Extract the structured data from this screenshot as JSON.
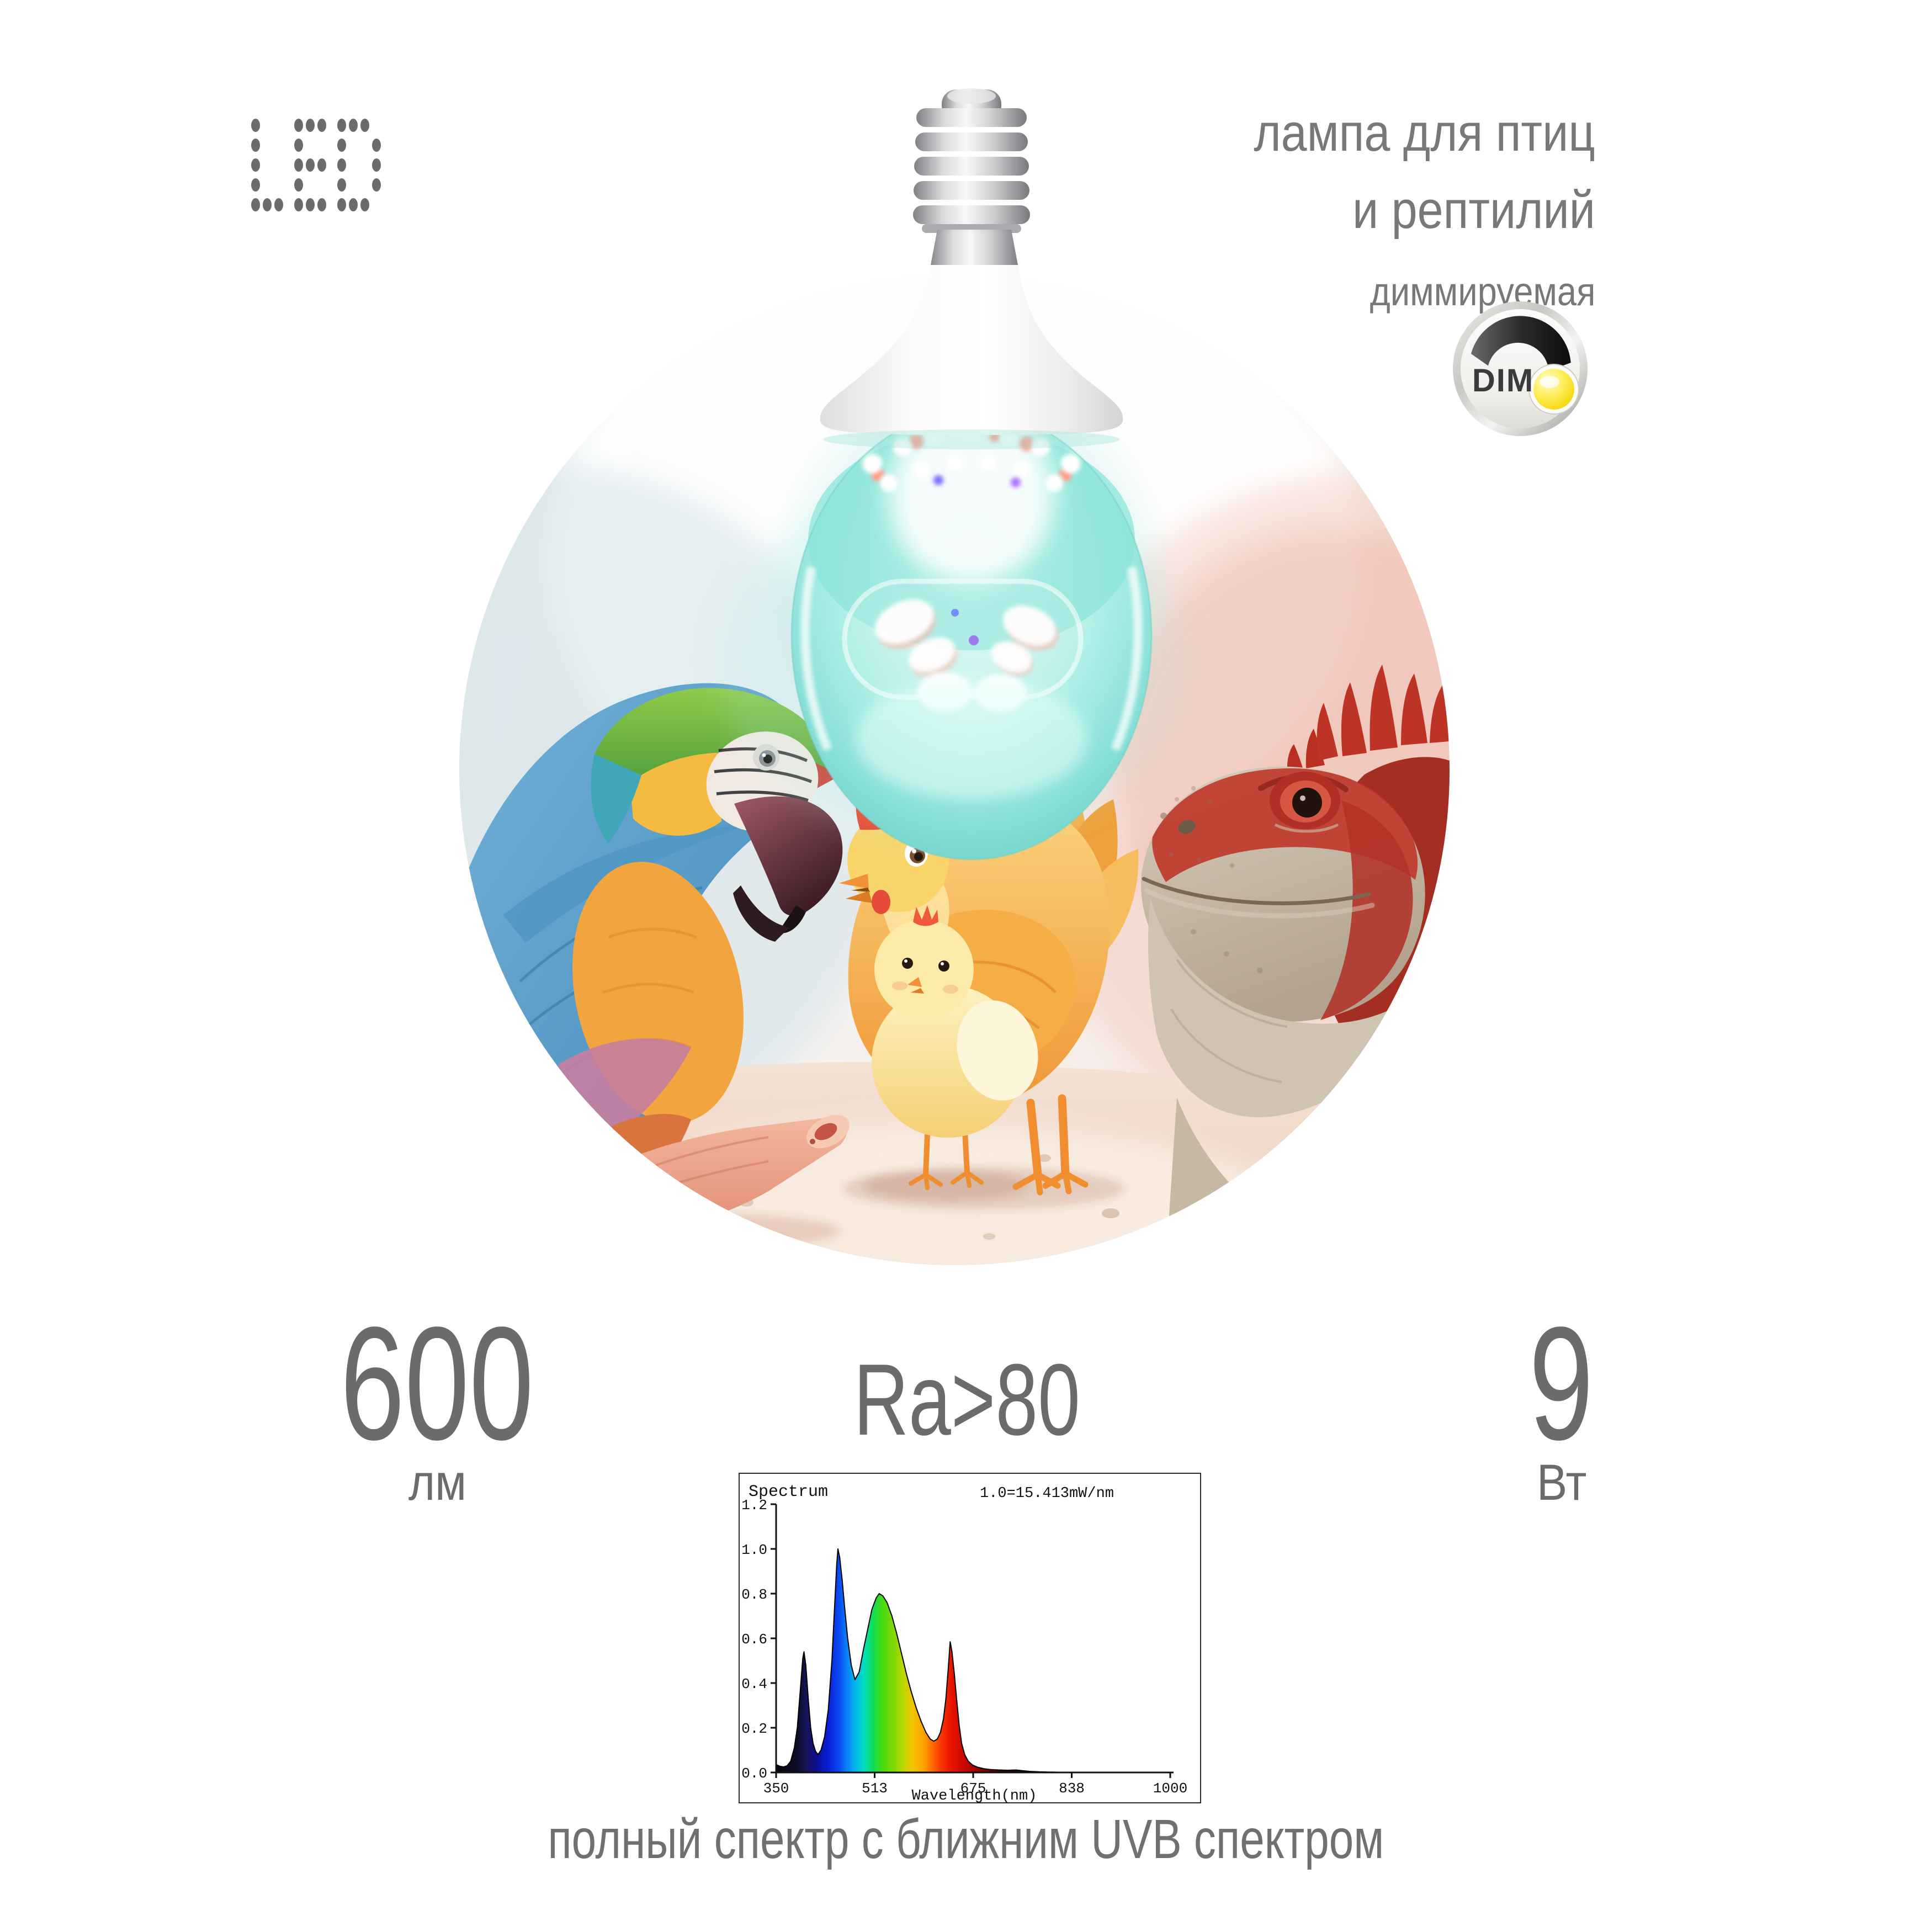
{
  "logo": {
    "text": "LED"
  },
  "header": {
    "line1": "лампа для птиц",
    "line2": "и рептилий",
    "line3": "диммируемая"
  },
  "dim_badge": {
    "label": "DIM"
  },
  "stats": {
    "lumens_value": "600",
    "lumens_unit": "лм",
    "cri_value": "Ra>80",
    "watts_value": "9",
    "watts_unit": "Вт"
  },
  "caption": "полный спектр с ближним UVB спектром",
  "colors": {
    "stat_text": "#6a6b6d",
    "heading_text": "#77787a",
    "logo_dots": "#6a6b6d",
    "badge_yellow": "#f2d40c",
    "bulb_glow_teal": "#8ce4da",
    "spectrum_blue_peak": "#0a46f0",
    "spectrum_green_peak": "#3fd810",
    "spectrum_red_peak": "#ee1000"
  },
  "chart_data": {
    "type": "area",
    "title": "Spectrum",
    "scale_note": "1.0=15.413mW/nm",
    "xlabel": "Wavelength(nm)",
    "ylabel": "",
    "xlim": [
      350,
      1000
    ],
    "ylim": [
      0,
      1.2
    ],
    "x_ticks": [
      "350",
      "513",
      "675",
      "838",
      "1000"
    ],
    "y_ticks": [
      "0.0",
      "0.2",
      "0.4",
      "0.6",
      "0.8",
      "1.0",
      "1.2"
    ],
    "grid": false,
    "legend": false,
    "peaks_nm": [
      396,
      452,
      520,
      637
    ],
    "series": [
      {
        "name": "led-spectrum-intensity",
        "points": [
          [
            350,
            0.035
          ],
          [
            356,
            0.028
          ],
          [
            362,
            0.025
          ],
          [
            368,
            0.03
          ],
          [
            374,
            0.05
          ],
          [
            380,
            0.11
          ],
          [
            385,
            0.2
          ],
          [
            390,
            0.37
          ],
          [
            394,
            0.51
          ],
          [
            396,
            0.54
          ],
          [
            399,
            0.48
          ],
          [
            403,
            0.33
          ],
          [
            407,
            0.2
          ],
          [
            411,
            0.13
          ],
          [
            415,
            0.095
          ],
          [
            419,
            0.08
          ],
          [
            424,
            0.1
          ],
          [
            430,
            0.16
          ],
          [
            436,
            0.28
          ],
          [
            442,
            0.5
          ],
          [
            446,
            0.72
          ],
          [
            450,
            0.93
          ],
          [
            452,
            1.0
          ],
          [
            455,
            0.96
          ],
          [
            459,
            0.86
          ],
          [
            463,
            0.74
          ],
          [
            468,
            0.6
          ],
          [
            474,
            0.48
          ],
          [
            480,
            0.415
          ],
          [
            487,
            0.45
          ],
          [
            494,
            0.55
          ],
          [
            501,
            0.64
          ],
          [
            508,
            0.73
          ],
          [
            515,
            0.78
          ],
          [
            520,
            0.8
          ],
          [
            526,
            0.79
          ],
          [
            533,
            0.76
          ],
          [
            541,
            0.7
          ],
          [
            549,
            0.62
          ],
          [
            557,
            0.53
          ],
          [
            565,
            0.44
          ],
          [
            573,
            0.36
          ],
          [
            581,
            0.29
          ],
          [
            589,
            0.23
          ],
          [
            597,
            0.18
          ],
          [
            604,
            0.15
          ],
          [
            610,
            0.14
          ],
          [
            616,
            0.15
          ],
          [
            621,
            0.18
          ],
          [
            626,
            0.24
          ],
          [
            630,
            0.33
          ],
          [
            634,
            0.47
          ],
          [
            637,
            0.585
          ],
          [
            640,
            0.54
          ],
          [
            644,
            0.44
          ],
          [
            648,
            0.32
          ],
          [
            652,
            0.21
          ],
          [
            656,
            0.13
          ],
          [
            661,
            0.08
          ],
          [
            667,
            0.05
          ],
          [
            674,
            0.033
          ],
          [
            682,
            0.024
          ],
          [
            692,
            0.017
          ],
          [
            704,
            0.013
          ],
          [
            718,
            0.011
          ],
          [
            732,
            0.01
          ],
          [
            746,
            0.011
          ],
          [
            756,
            0.008
          ],
          [
            768,
            0.005
          ],
          [
            784,
            0.003
          ],
          [
            800,
            0.002
          ],
          [
            820,
            0.001
          ],
          [
            840,
            0.0005
          ],
          [
            860,
            0.0
          ]
        ]
      }
    ]
  }
}
